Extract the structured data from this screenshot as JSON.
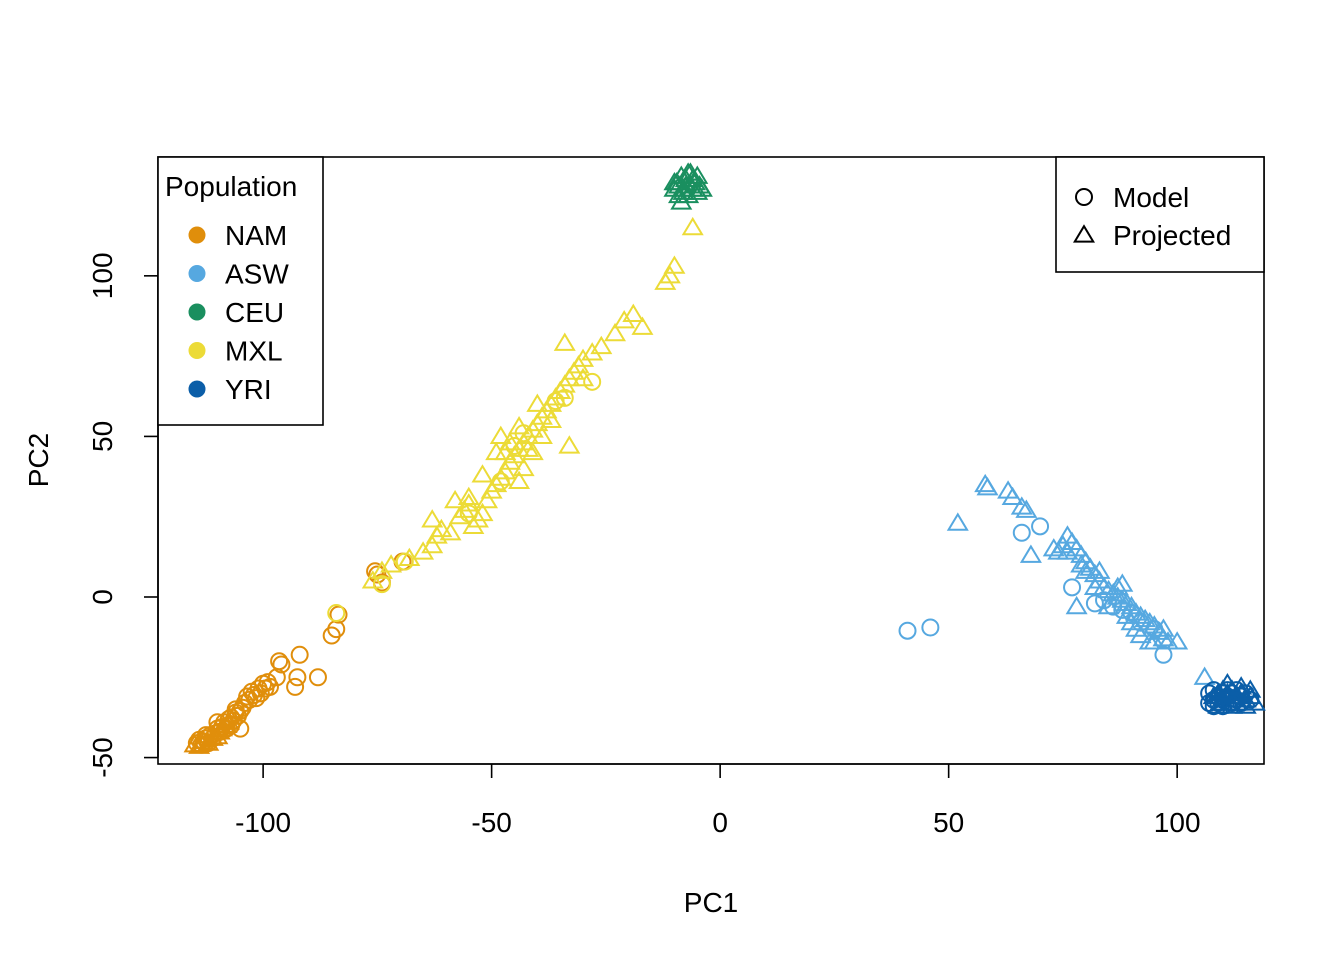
{
  "chart_data": {
    "type": "scatter",
    "xlabel": "PC1",
    "ylabel": "PC2",
    "xlim": [
      -123,
      119
    ],
    "ylim": [
      -52,
      137
    ],
    "x_ticks": [
      -100,
      -50,
      0,
      50,
      100
    ],
    "y_ticks": [
      -50,
      0,
      50,
      100
    ],
    "x_tick_labels": [
      "-100",
      "-50",
      "0",
      "50",
      "100"
    ],
    "y_tick_labels": [
      "-50",
      "0",
      "50",
      "100"
    ],
    "legend_population": {
      "title": "Population",
      "placement": "top-left",
      "entries": [
        {
          "label": "NAM",
          "color": "#e08e0b"
        },
        {
          "label": "ASW",
          "color": "#56a8e0"
        },
        {
          "label": "CEU",
          "color": "#1a8f5f"
        },
        {
          "label": "MXL",
          "color": "#ecdb37"
        },
        {
          "label": "YRI",
          "color": "#0b5ea8"
        }
      ]
    },
    "legend_type": {
      "placement": "top-right",
      "entries": [
        {
          "label": "Model",
          "marker": "circle"
        },
        {
          "label": "Projected",
          "marker": "triangle"
        }
      ]
    },
    "series": [
      {
        "name": "NAM",
        "marker": "circle",
        "color": "#e08e0b",
        "points": [
          [
            -114.5,
            -45.5
          ],
          [
            -114,
            -44.5
          ],
          [
            -113.5,
            -46
          ],
          [
            -113,
            -45
          ],
          [
            -112.5,
            -44
          ],
          [
            -112,
            -45.5
          ],
          [
            -111.5,
            -43
          ],
          [
            -111,
            -44
          ],
          [
            -110.5,
            -42.5
          ],
          [
            -110,
            -41
          ],
          [
            -109.5,
            -42
          ],
          [
            -109,
            -40.5
          ],
          [
            -108.5,
            -39
          ],
          [
            -108,
            -41
          ],
          [
            -107.5,
            -38
          ],
          [
            -107,
            -37.5
          ],
          [
            -106.5,
            -38.5
          ],
          [
            -106,
            -36
          ],
          [
            -105.5,
            -37
          ],
          [
            -105,
            -35.5
          ],
          [
            -104.5,
            -34.5
          ],
          [
            -104,
            -33
          ],
          [
            -103.5,
            -31
          ],
          [
            -103,
            -32
          ],
          [
            -102.5,
            -29.5
          ],
          [
            -102,
            -30.5
          ],
          [
            -101.5,
            -31.5
          ],
          [
            -101,
            -28.5
          ],
          [
            -100.5,
            -30
          ],
          [
            -100,
            -27
          ],
          [
            -99.5,
            -28.5
          ],
          [
            -99,
            -26.5
          ],
          [
            -98.5,
            -28
          ],
          [
            -97,
            -25
          ],
          [
            -96,
            -21
          ],
          [
            -96.5,
            -20
          ],
          [
            -93,
            -28
          ],
          [
            -92.5,
            -25
          ],
          [
            -92,
            -18
          ],
          [
            -88,
            -25
          ],
          [
            -85,
            -12
          ],
          [
            -84,
            -10
          ],
          [
            -83.5,
            -5.5
          ],
          [
            -75.5,
            8
          ],
          [
            -75,
            7
          ],
          [
            -74,
            4.5
          ],
          [
            -69.5,
            11
          ],
          [
            -107,
            -40
          ],
          [
            -106,
            -35
          ],
          [
            -110,
            -39
          ],
          [
            -112.5,
            -43
          ],
          [
            -105,
            -41
          ]
        ]
      },
      {
        "name": "NAM",
        "marker": "triangle",
        "color": "#e08e0b",
        "points": [
          [
            -115,
            -46
          ],
          [
            -114,
            -46.5
          ],
          [
            -113,
            -45
          ],
          [
            -112,
            -45.5
          ],
          [
            -111,
            -44
          ],
          [
            -110,
            -43.5
          ],
          [
            -109.5,
            -42
          ],
          [
            -109,
            -41
          ],
          [
            -108,
            -40
          ],
          [
            -107.5,
            -39
          ]
        ]
      },
      {
        "name": "MXL",
        "marker": "circle",
        "color": "#ecdb37",
        "points": [
          [
            -84,
            -5
          ],
          [
            -74,
            4
          ],
          [
            -69,
            11
          ],
          [
            -55,
            26
          ],
          [
            -48,
            36
          ],
          [
            -45,
            47
          ],
          [
            -43,
            51
          ],
          [
            -36,
            61
          ],
          [
            -34,
            62
          ],
          [
            -28,
            67
          ]
        ]
      },
      {
        "name": "MXL",
        "marker": "triangle",
        "color": "#ecdb37",
        "points": [
          [
            -76,
            5
          ],
          [
            -74,
            8
          ],
          [
            -72,
            10
          ],
          [
            -68,
            12
          ],
          [
            -65,
            14
          ],
          [
            -63,
            16
          ],
          [
            -62,
            19
          ],
          [
            -63,
            24
          ],
          [
            -61,
            21
          ],
          [
            -59,
            20
          ],
          [
            -57,
            25
          ],
          [
            -56,
            27
          ],
          [
            -55,
            29
          ],
          [
            -54,
            22
          ],
          [
            -53,
            24
          ],
          [
            -52,
            26
          ],
          [
            -51,
            30
          ],
          [
            -50,
            33
          ],
          [
            -49,
            35
          ],
          [
            -48,
            37
          ],
          [
            -47,
            39
          ],
          [
            -46,
            42
          ],
          [
            -45,
            44
          ],
          [
            -44,
            46
          ],
          [
            -43,
            48
          ],
          [
            -42,
            50
          ],
          [
            -41,
            52
          ],
          [
            -40,
            54
          ],
          [
            -39,
            56
          ],
          [
            -38,
            58
          ],
          [
            -37,
            60
          ],
          [
            -36,
            62
          ],
          [
            -35,
            64
          ],
          [
            -34,
            66
          ],
          [
            -33,
            68
          ],
          [
            -32,
            70
          ],
          [
            -31,
            72
          ],
          [
            -30,
            74
          ],
          [
            -28,
            76
          ],
          [
            -26,
            78
          ],
          [
            -23,
            82
          ],
          [
            -21,
            86
          ],
          [
            -19,
            88
          ],
          [
            -17,
            84
          ],
          [
            -12,
            98
          ],
          [
            -11,
            100
          ],
          [
            -10,
            103
          ],
          [
            -6,
            115
          ],
          [
            -34,
            79
          ],
          [
            -40,
            60
          ],
          [
            -44,
            53
          ],
          [
            -46,
            48
          ],
          [
            -49,
            45
          ],
          [
            -52,
            38
          ],
          [
            -55,
            31
          ],
          [
            -58,
            30
          ],
          [
            -43,
            40
          ],
          [
            -41,
            45
          ],
          [
            -39,
            50
          ],
          [
            -33,
            47
          ],
          [
            -37,
            55
          ],
          [
            -30,
            68
          ],
          [
            -47,
            45
          ],
          [
            -44,
            36
          ],
          [
            -42,
            46
          ],
          [
            -48,
            50
          ]
        ]
      },
      {
        "name": "CEU",
        "marker": "triangle",
        "color": "#1a8f5f",
        "points": [
          [
            -10,
            127
          ],
          [
            -9.5,
            129
          ],
          [
            -9,
            128
          ],
          [
            -8.5,
            131
          ],
          [
            -8,
            127
          ],
          [
            -7.5,
            130
          ],
          [
            -7,
            132
          ],
          [
            -6.5,
            128
          ],
          [
            -6,
            130
          ],
          [
            -5.5,
            129
          ],
          [
            -5,
            131
          ],
          [
            -4.5,
            128
          ],
          [
            -4,
            127
          ],
          [
            -7,
            125
          ],
          [
            -8,
            126
          ],
          [
            -6,
            127
          ],
          [
            -5,
            126
          ],
          [
            -9,
            125
          ],
          [
            -10,
            129
          ],
          [
            -7.5,
            128
          ],
          [
            -6.5,
            132
          ],
          [
            -8.5,
            123
          ]
        ]
      },
      {
        "name": "ASW",
        "marker": "circle",
        "color": "#56a8e0",
        "points": [
          [
            41,
            -10.5
          ],
          [
            46,
            -9.5
          ],
          [
            66,
            20
          ],
          [
            70,
            22
          ],
          [
            77,
            3
          ],
          [
            82,
            -2
          ],
          [
            86,
            -3
          ],
          [
            90,
            -5
          ],
          [
            92,
            -8
          ],
          [
            95,
            -10
          ],
          [
            97,
            -18
          ],
          [
            88,
            -4
          ],
          [
            84,
            -1
          ]
        ]
      },
      {
        "name": "ASW",
        "marker": "triangle",
        "color": "#56a8e0",
        "points": [
          [
            52,
            23
          ],
          [
            58,
            35
          ],
          [
            58.5,
            34
          ],
          [
            63,
            33
          ],
          [
            64,
            31
          ],
          [
            66,
            28
          ],
          [
            67,
            27
          ],
          [
            68,
            13
          ],
          [
            73,
            15
          ],
          [
            74,
            14
          ],
          [
            75,
            16
          ],
          [
            76,
            19
          ],
          [
            77,
            17
          ],
          [
            78,
            15
          ],
          [
            79,
            13
          ],
          [
            80,
            11
          ],
          [
            81,
            9
          ],
          [
            82,
            7
          ],
          [
            83,
            5
          ],
          [
            84,
            3
          ],
          [
            85,
            2
          ],
          [
            86,
            1
          ],
          [
            87,
            0
          ],
          [
            88,
            -1
          ],
          [
            89,
            -2
          ],
          [
            90,
            -3
          ],
          [
            91,
            -5
          ],
          [
            92,
            -6
          ],
          [
            93,
            -7
          ],
          [
            94,
            -8
          ],
          [
            95,
            -9
          ],
          [
            96,
            -11
          ],
          [
            97,
            -13
          ],
          [
            98,
            -14
          ],
          [
            100,
            -14
          ],
          [
            78,
            -3
          ],
          [
            80,
            8
          ],
          [
            85,
            -3
          ],
          [
            90,
            -8
          ],
          [
            92,
            -12
          ],
          [
            94,
            -14
          ],
          [
            76,
            14
          ],
          [
            79,
            10
          ],
          [
            83,
            8
          ],
          [
            87,
            3
          ],
          [
            89,
            -6
          ],
          [
            95,
            -14
          ],
          [
            97,
            -10
          ],
          [
            106,
            -25
          ],
          [
            91,
            -10
          ],
          [
            88,
            4
          ],
          [
            82,
            3
          ]
        ]
      },
      {
        "name": "YRI",
        "marker": "circle",
        "color": "#0b5ea8",
        "points": [
          [
            107,
            -30
          ],
          [
            108,
            -29
          ],
          [
            108,
            -32
          ],
          [
            109,
            -31
          ],
          [
            109,
            -33
          ],
          [
            110,
            -30
          ],
          [
            110,
            -32
          ],
          [
            111,
            -29
          ],
          [
            111,
            -31
          ],
          [
            112,
            -33
          ],
          [
            112,
            -30
          ],
          [
            113,
            -32
          ],
          [
            113,
            -29
          ],
          [
            114,
            -31
          ],
          [
            114,
            -33
          ],
          [
            115,
            -30
          ],
          [
            116,
            -32
          ],
          [
            107,
            -33
          ],
          [
            108,
            -34
          ],
          [
            110,
            -34
          ]
        ]
      },
      {
        "name": "YRI",
        "marker": "triangle",
        "color": "#0b5ea8",
        "points": [
          [
            108,
            -31
          ],
          [
            109,
            -30
          ],
          [
            110,
            -29
          ],
          [
            110,
            -33
          ],
          [
            111,
            -32
          ],
          [
            111,
            -30
          ],
          [
            112,
            -29
          ],
          [
            112,
            -32
          ],
          [
            113,
            -31
          ],
          [
            113,
            -33
          ],
          [
            114,
            -30
          ],
          [
            115,
            -32
          ],
          [
            116,
            -31
          ],
          [
            117,
            -33
          ],
          [
            111,
            -27
          ],
          [
            109,
            -34
          ],
          [
            112,
            -34
          ],
          [
            114,
            -28
          ],
          [
            115,
            -34
          ],
          [
            116,
            -29
          ]
        ]
      }
    ]
  }
}
